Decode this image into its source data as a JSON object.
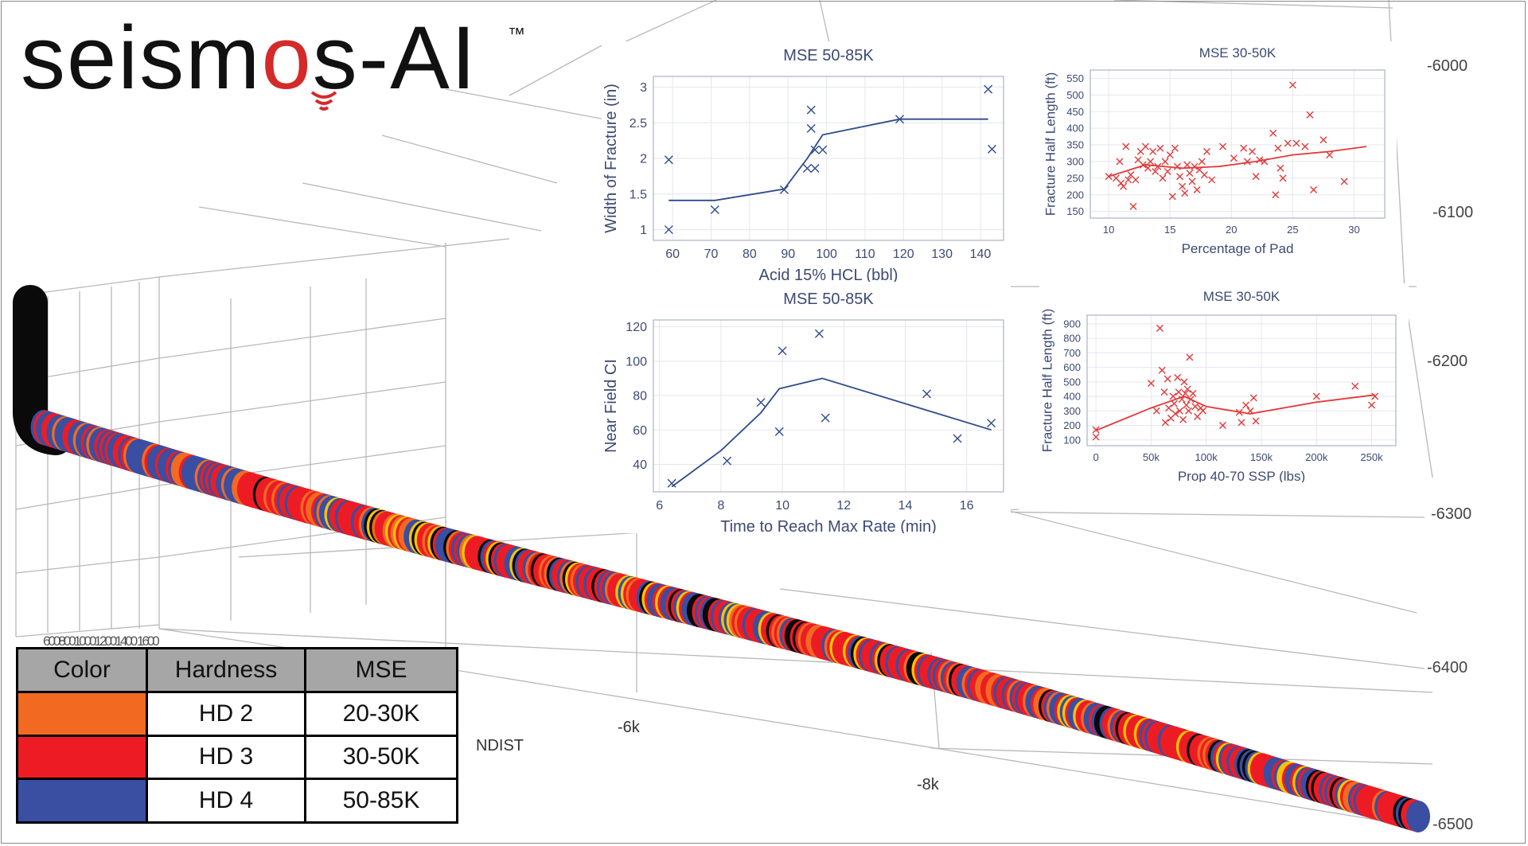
{
  "branding": {
    "logo_pre": "seism",
    "logo_o": "o",
    "logo_post": "s-AI",
    "trademark": "™"
  },
  "scene": {
    "x_axis_title": "NDIST",
    "x_ticks": [
      "-6k",
      "-8k"
    ],
    "z_ticks": [
      "-6000",
      "-6100",
      "-6200",
      "-6300",
      "-6400",
      "-6500"
    ],
    "corner_ticks_text": "600800100012001400 1600",
    "colors": {
      "hd2": "#f26a21",
      "hd3": "#ed1c24",
      "hd4": "#3a4ea2",
      "black": "#0a0a0a",
      "yellow": "#f5c400"
    }
  },
  "legend": {
    "headers": [
      "Color",
      "Hardness",
      "MSE"
    ],
    "rows": [
      {
        "color": "#f26a21",
        "hardness": "HD 2",
        "mse": "20-30K"
      },
      {
        "color": "#ed1c24",
        "hardness": "HD 3",
        "mse": "30-50K"
      },
      {
        "color": "#3a4ea2",
        "hardness": "HD 4",
        "mse": "50-85K"
      }
    ]
  },
  "chart_data": [
    {
      "type": "scatter",
      "title": "MSE 50-85K",
      "xlabel": "Acid 15% HCL (bbl)",
      "ylabel": "Width of Fracture (in)",
      "xlim": [
        55,
        146
      ],
      "ylim": [
        0.85,
        3.15
      ],
      "xticks": [
        60,
        70,
        80,
        90,
        100,
        110,
        120,
        130,
        140
      ],
      "yticks": [
        1,
        1.5,
        2,
        2.5,
        3
      ],
      "ytick_labels": [
        "1",
        "1.5",
        "2",
        "2.5",
        "3"
      ],
      "color": "#2e4a8c",
      "marker": "x",
      "points": [
        [
          59,
          1.98
        ],
        [
          59,
          1.0
        ],
        [
          71,
          1.28
        ],
        [
          89,
          1.56
        ],
        [
          95,
          1.86
        ],
        [
          96,
          2.68
        ],
        [
          96,
          2.42
        ],
        [
          97,
          2.12
        ],
        [
          97,
          1.86
        ],
        [
          99,
          2.12
        ],
        [
          119,
          2.55
        ],
        [
          142,
          2.97
        ],
        [
          143,
          2.13
        ]
      ],
      "trend": [
        [
          59,
          1.41
        ],
        [
          71,
          1.41
        ],
        [
          89,
          1.57
        ],
        [
          95,
          2.0
        ],
        [
          99,
          2.33
        ],
        [
          119,
          2.55
        ],
        [
          142,
          2.55
        ]
      ]
    },
    {
      "type": "scatter",
      "title": "MSE 30-50K",
      "xlabel": "Percentage of Pad",
      "ylabel": "Fracture Half Length (ft)",
      "xlim": [
        8.5,
        32.5
      ],
      "ylim": [
        130,
        575
      ],
      "xticks": [
        10,
        15,
        20,
        25,
        30
      ],
      "yticks": [
        150,
        200,
        250,
        300,
        350,
        400,
        450,
        500,
        550
      ],
      "ytick_labels": [
        "150",
        "200",
        "250",
        "300",
        "350",
        "400",
        "450",
        "500",
        "550"
      ],
      "color": "#e33a3a",
      "marker": "x",
      "points": [
        [
          10,
          255
        ],
        [
          10.6,
          250
        ],
        [
          10.9,
          300
        ],
        [
          11,
          235
        ],
        [
          11.2,
          225
        ],
        [
          11.4,
          345
        ],
        [
          11.6,
          245
        ],
        [
          11.8,
          260
        ],
        [
          12,
          165
        ],
        [
          12.2,
          245
        ],
        [
          12.4,
          305
        ],
        [
          12.6,
          330
        ],
        [
          12.8,
          290
        ],
        [
          13,
          345
        ],
        [
          13.2,
          280
        ],
        [
          13.4,
          300
        ],
        [
          13.6,
          330
        ],
        [
          13.8,
          270
        ],
        [
          14,
          285
        ],
        [
          14.2,
          340
        ],
        [
          14.4,
          250
        ],
        [
          14.6,
          300
        ],
        [
          14.8,
          270
        ],
        [
          15,
          320
        ],
        [
          15.2,
          195
        ],
        [
          15.4,
          340
        ],
        [
          15.6,
          285
        ],
        [
          15.8,
          255
        ],
        [
          16,
          225
        ],
        [
          16.2,
          205
        ],
        [
          16.4,
          290
        ],
        [
          16.6,
          265
        ],
        [
          16.8,
          240
        ],
        [
          17,
          285
        ],
        [
          17.2,
          215
        ],
        [
          17.4,
          275
        ],
        [
          17.6,
          300
        ],
        [
          17.8,
          260
        ],
        [
          18,
          330
        ],
        [
          18.4,
          245
        ],
        [
          19.3,
          345
        ],
        [
          20.2,
          310
        ],
        [
          21,
          340
        ],
        [
          21.3,
          300
        ],
        [
          21.7,
          330
        ],
        [
          22,
          255
        ],
        [
          22.3,
          305
        ],
        [
          22.7,
          300
        ],
        [
          23.4,
          385
        ],
        [
          23.6,
          200
        ],
        [
          23.8,
          340
        ],
        [
          24,
          280
        ],
        [
          24.2,
          250
        ],
        [
          24.6,
          355
        ],
        [
          25,
          530
        ],
        [
          25.3,
          355
        ],
        [
          26,
          345
        ],
        [
          26.4,
          440
        ],
        [
          26.7,
          215
        ],
        [
          27.5,
          365
        ],
        [
          28,
          320
        ],
        [
          29.2,
          240
        ]
      ],
      "trend": [
        [
          10,
          255
        ],
        [
          13,
          290
        ],
        [
          16,
          280
        ],
        [
          19,
          285
        ],
        [
          22,
          300
        ],
        [
          25,
          320
        ],
        [
          28,
          330
        ],
        [
          31,
          345
        ]
      ]
    },
    {
      "type": "scatter",
      "title": "MSE 50-85K",
      "xlabel": "Time to Reach Max Rate (min)",
      "ylabel": "Near Field CI",
      "xlim": [
        5.8,
        17.2
      ],
      "ylim": [
        24,
        124
      ],
      "xticks": [
        6,
        8,
        10,
        12,
        14,
        16
      ],
      "yticks": [
        40,
        60,
        80,
        100,
        120
      ],
      "ytick_labels": [
        "40",
        "60",
        "80",
        "100",
        "120"
      ],
      "color": "#2e4a8c",
      "marker": "x",
      "points": [
        [
          6.4,
          29
        ],
        [
          8.2,
          42
        ],
        [
          9.3,
          76
        ],
        [
          9.9,
          59
        ],
        [
          10,
          106
        ],
        [
          11.2,
          116
        ],
        [
          11.4,
          67
        ],
        [
          14.7,
          81
        ],
        [
          15.7,
          55
        ],
        [
          16.8,
          64
        ]
      ],
      "trend": [
        [
          6.4,
          27
        ],
        [
          8,
          48
        ],
        [
          9.3,
          70
        ],
        [
          9.9,
          84
        ],
        [
          11.3,
          90
        ],
        [
          16.8,
          60
        ]
      ]
    },
    {
      "type": "scatter",
      "title": "MSE 30-50K",
      "xlabel": "Prop 40-70 SSP (lbs)",
      "ylabel": "Fracture Half Length (ft)",
      "xlim": [
        -8000,
        272000
      ],
      "ylim": [
        60,
        960
      ],
      "xticks": [
        0,
        50000,
        100000,
        150000,
        200000,
        250000
      ],
      "xtick_labels": [
        "0",
        "50k",
        "100k",
        "150k",
        "200k",
        "250k"
      ],
      "yticks": [
        100,
        200,
        300,
        400,
        500,
        600,
        700,
        800,
        900
      ],
      "ytick_labels": [
        "100",
        "200",
        "300",
        "400",
        "500",
        "600",
        "700",
        "800",
        "900"
      ],
      "color": "#e33a3a",
      "marker": "x",
      "points": [
        [
          0,
          170
        ],
        [
          0,
          120
        ],
        [
          50000,
          490
        ],
        [
          55000,
          300
        ],
        [
          58000,
          870
        ],
        [
          60000,
          580
        ],
        [
          62000,
          430
        ],
        [
          63000,
          220
        ],
        [
          65000,
          520
        ],
        [
          66000,
          320
        ],
        [
          68000,
          250
        ],
        [
          70000,
          400
        ],
        [
          71000,
          350
        ],
        [
          72000,
          280
        ],
        [
          74000,
          530
        ],
        [
          75000,
          430
        ],
        [
          76000,
          300
        ],
        [
          78000,
          380
        ],
        [
          79000,
          240
        ],
        [
          80000,
          500
        ],
        [
          81000,
          420
        ],
        [
          82000,
          340
        ],
        [
          83000,
          450
        ],
        [
          84000,
          300
        ],
        [
          85000,
          670
        ],
        [
          86000,
          380
        ],
        [
          88000,
          420
        ],
        [
          90000,
          330
        ],
        [
          92000,
          260
        ],
        [
          95000,
          320
        ],
        [
          97000,
          300
        ],
        [
          115000,
          200
        ],
        [
          130000,
          290
        ],
        [
          132000,
          220
        ],
        [
          136000,
          340
        ],
        [
          140000,
          300
        ],
        [
          143000,
          390
        ],
        [
          145000,
          230
        ],
        [
          200000,
          400
        ],
        [
          235000,
          470
        ],
        [
          250000,
          340
        ],
        [
          253000,
          400
        ]
      ],
      "trend": [
        [
          0,
          165
        ],
        [
          50000,
          320
        ],
        [
          80000,
          400
        ],
        [
          100000,
          330
        ],
        [
          140000,
          280
        ],
        [
          200000,
          360
        ],
        [
          253000,
          410
        ]
      ]
    }
  ]
}
